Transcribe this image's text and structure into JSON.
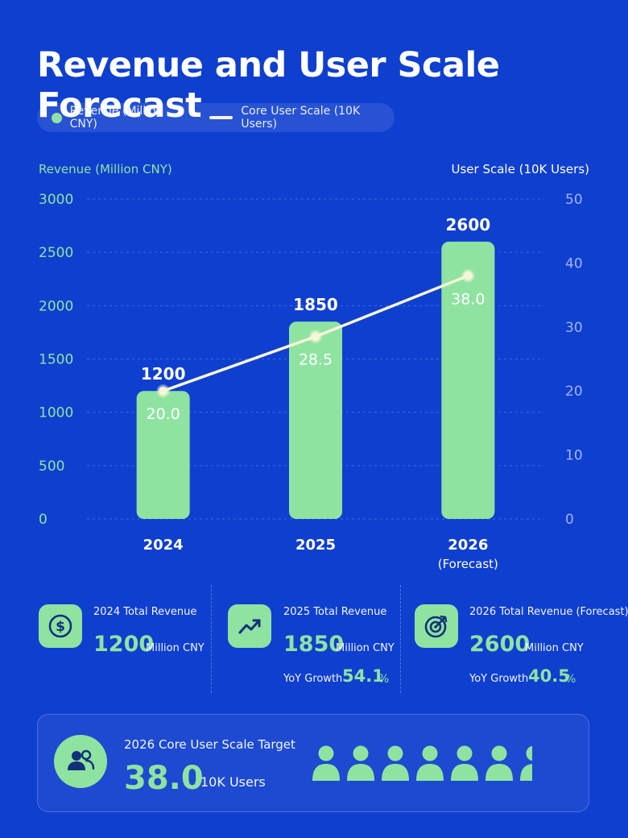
{
  "title": "Revenue and User Scale Forecast",
  "legend": {
    "revenue": "Revenue (Million CNY)",
    "users": "Core User Scale (10K Users)"
  },
  "colors": {
    "background": "#0f3fcf",
    "bar": "#8fe3a1",
    "line": "#f7f6d8",
    "accent": "#8fe3a1"
  },
  "chart_data": {
    "type": "bar",
    "categories": [
      "2024",
      "2025",
      "2026"
    ],
    "category_notes": [
      "",
      "",
      "(Forecast)"
    ],
    "series": [
      {
        "name": "Revenue (Million CNY)",
        "type": "bar",
        "axis": "left",
        "values": [
          1200,
          1850,
          2600
        ]
      },
      {
        "name": "Core User Scale (10K Users)",
        "type": "line",
        "axis": "right",
        "values": [
          20.0,
          28.5,
          38.0
        ]
      }
    ],
    "ylabel": "Revenue (Million CNY)",
    "y2label": "User Scale (10K Users)",
    "ylim": [
      0,
      3000
    ],
    "y2lim": [
      0,
      50
    ],
    "yticks": [
      "0",
      "500",
      "1000",
      "1500",
      "2000",
      "2500",
      "3000"
    ],
    "y2ticks": [
      "0",
      "10",
      "20",
      "30",
      "40",
      "50"
    ],
    "bar_labels": [
      "1200",
      "1850",
      "2600"
    ],
    "line_labels": [
      "20.0",
      "28.5",
      "38.0"
    ],
    "grid": true
  },
  "stats": [
    {
      "icon": "dollar-icon",
      "label": "2024 Total Revenue",
      "value": "1200",
      "unit": "Million CNY",
      "yoy_label": "",
      "yoy_value": "",
      "yoy_pct": ""
    },
    {
      "icon": "trend-up-icon",
      "label": "2025 Total Revenue",
      "value": "1850",
      "unit": "Million CNY",
      "yoy_label": "YoY Growth",
      "yoy_value": "54.1",
      "yoy_pct": "%"
    },
    {
      "icon": "target-icon",
      "label": "2026 Total Revenue (Forecast)",
      "value": "2600",
      "unit": "Million CNY",
      "yoy_label": "YoY Growth",
      "yoy_value": "40.5",
      "yoy_pct": "%"
    }
  ],
  "target": {
    "icon": "users-icon",
    "label": "2026 Core User Scale Target",
    "value": "38.0",
    "unit": "10K Users",
    "people_full": 6.4
  }
}
